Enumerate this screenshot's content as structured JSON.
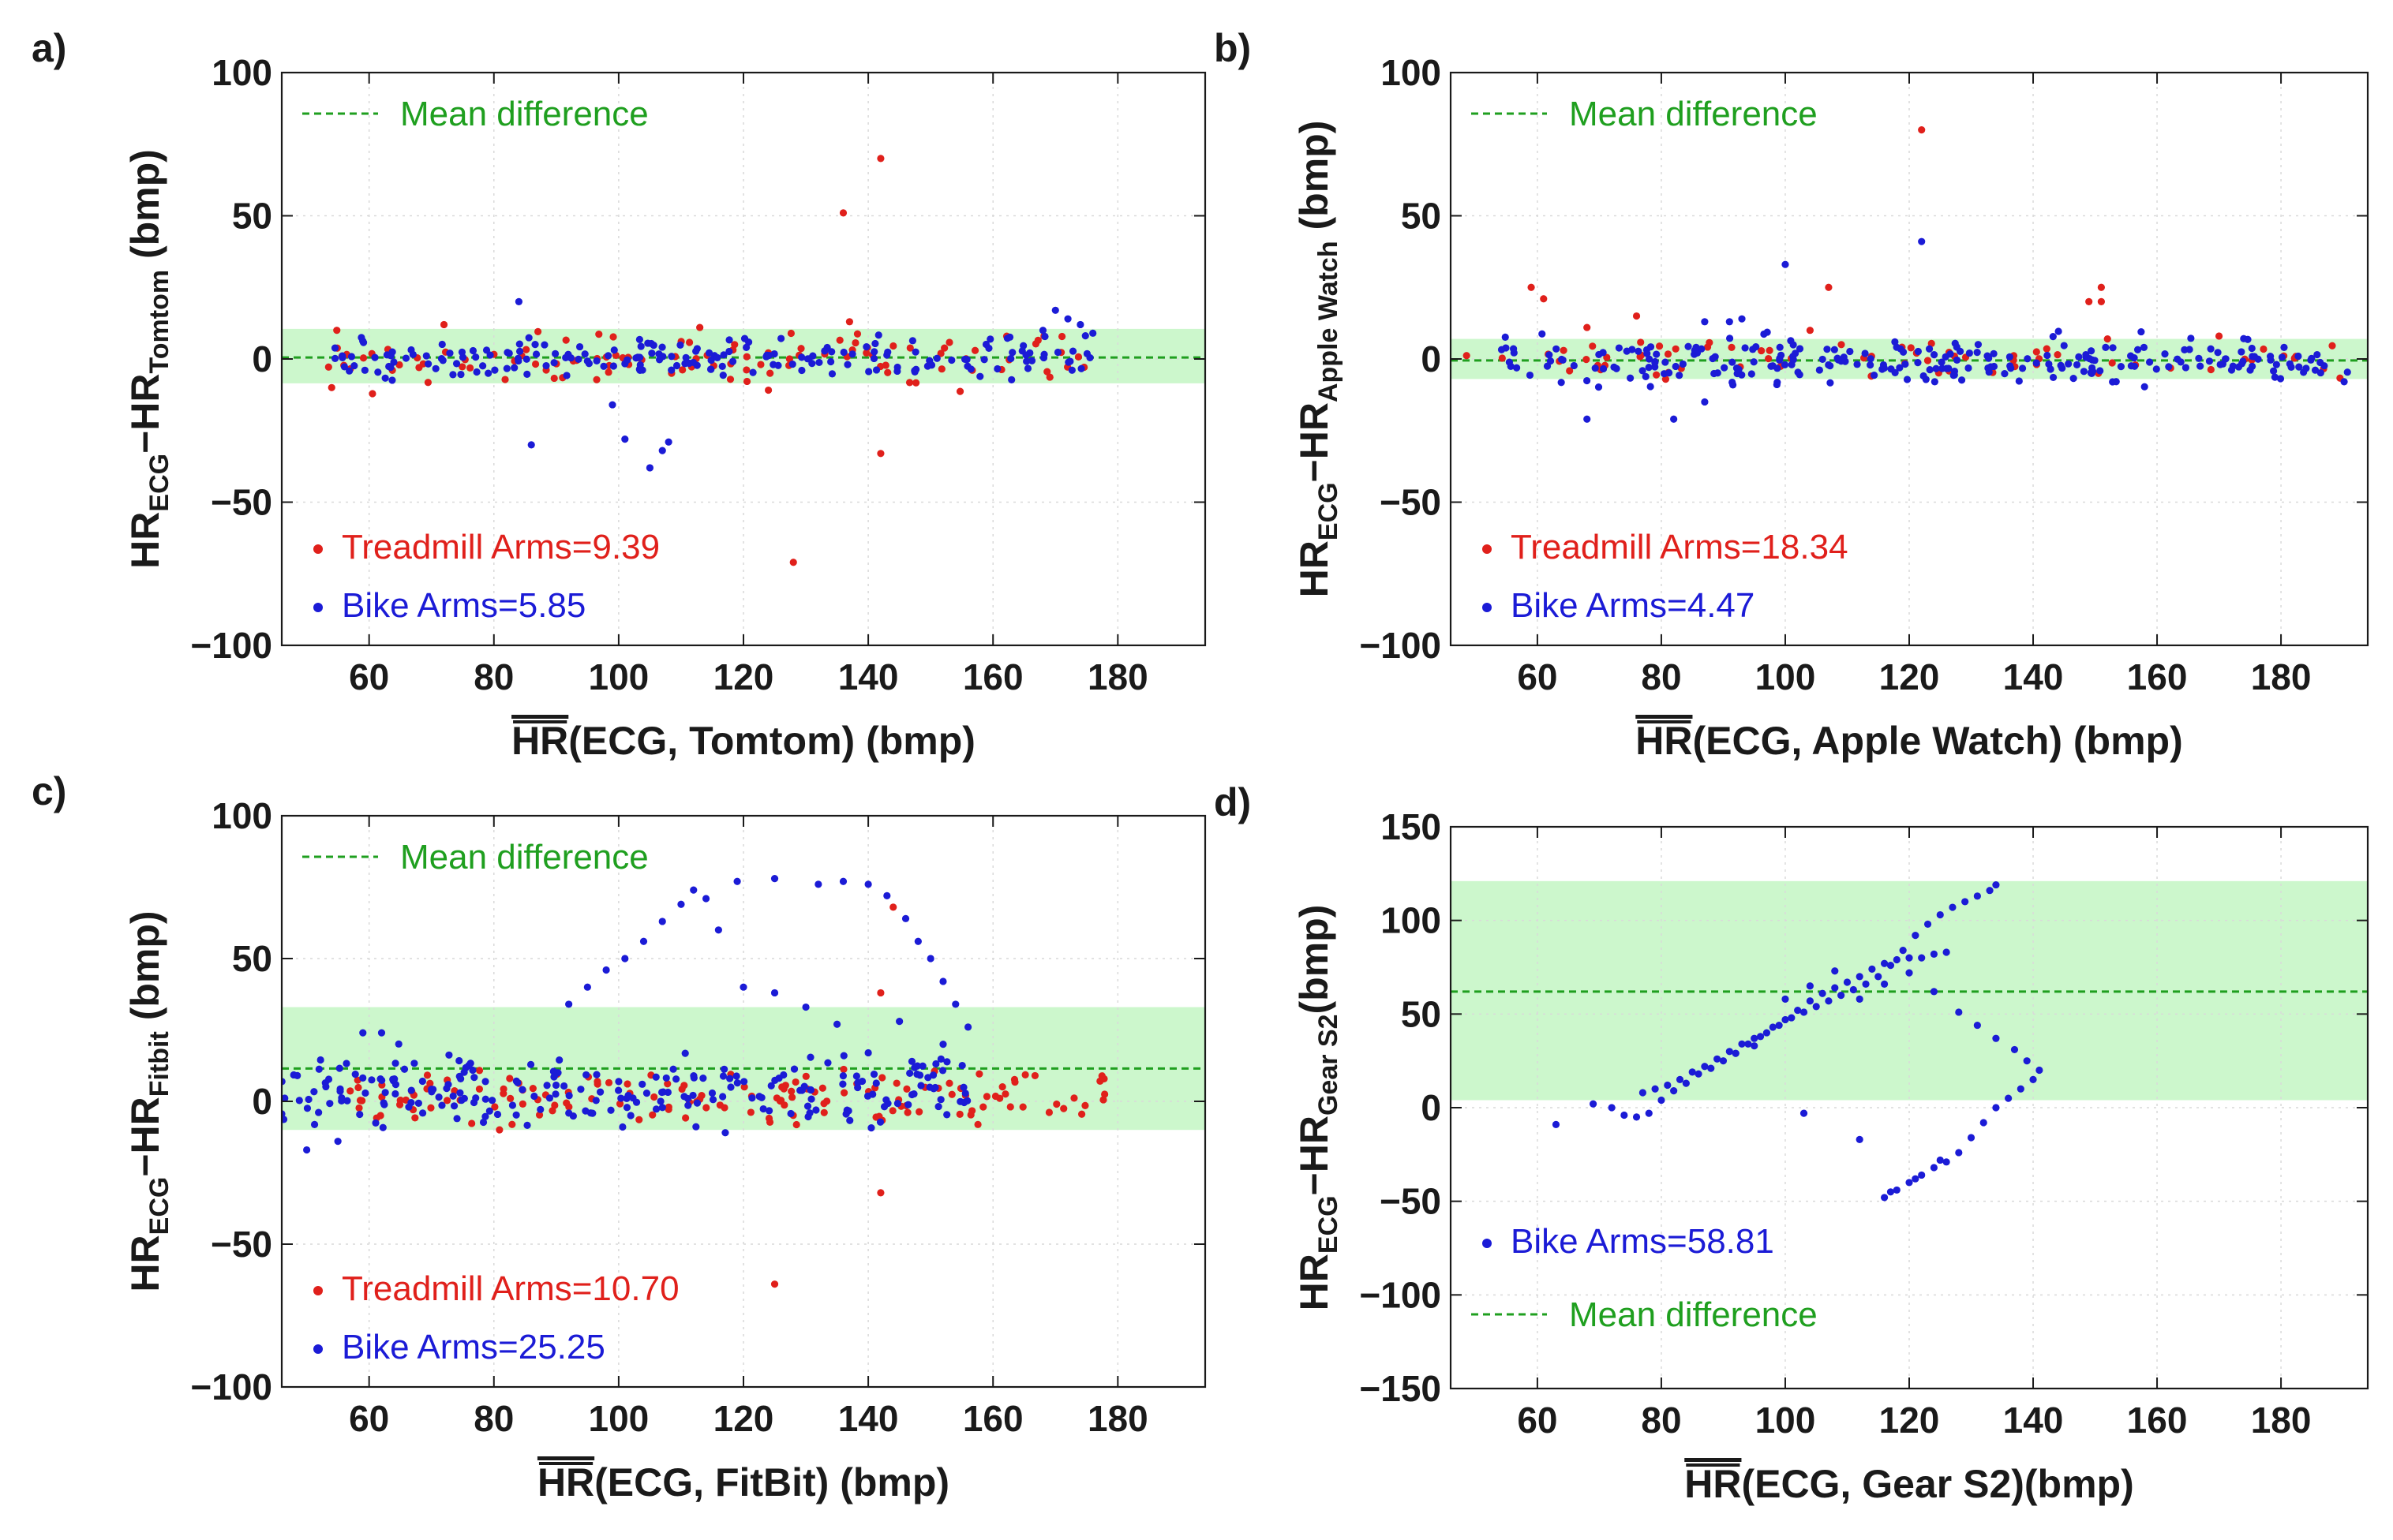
{
  "chart_data": [
    {
      "panel": "a)",
      "type": "scatter",
      "subtype": "bland-altman",
      "xlabel": "HR(ECG, Tomtom) (bmp)",
      "xlabel_parts": {
        "bar": "HR",
        "rest": "(ECG, Tomtom) (bmp)"
      },
      "ylabel": "HR_ECG−HR_Tomtom (bmp)",
      "ylabel_parts": {
        "main1": "HR",
        "sub1": "ECG",
        "dash": "−HR",
        "sub2": "Tomtom",
        "tail": " (bmp)"
      },
      "xlim": [
        46,
        194
      ],
      "ylim": [
        -100,
        100
      ],
      "xticks": [
        60,
        80,
        100,
        120,
        140,
        160,
        180
      ],
      "yticks": [
        -100,
        -50,
        0,
        50,
        100
      ],
      "ytick_labels": [
        "−100",
        "−50",
        "0",
        "50",
        "100"
      ],
      "mean_difference": 0.5,
      "limits_band": [
        -8.5,
        10.5
      ],
      "mean_label": "Mean difference",
      "mean_legend_pos": "top-left",
      "series": [
        {
          "name": "Treadmill Arms=9.39",
          "color": "#e0201b",
          "x_range": [
            52,
            176
          ],
          "bias": 0,
          "spread": 4.5,
          "count": 110,
          "seed": 11,
          "points": [
            [
              128,
              -71
            ],
            [
              136,
              51
            ],
            [
              142,
              70
            ],
            [
              142,
              -33
            ],
            [
              137,
              13
            ],
            [
              113,
              11
            ],
            [
              72,
              12
            ],
            [
              54,
              -10
            ],
            [
              68,
              -3
            ]
          ]
        },
        {
          "name": "Bike Arms=5.85",
          "color": "#1b1bd6",
          "x_range": [
            54,
            176
          ],
          "bias": 0.5,
          "spread": 3.5,
          "count": 200,
          "seed": 23,
          "points": [
            [
              86,
              -30
            ],
            [
              84,
              20
            ],
            [
              99,
              -16
            ],
            [
              101,
              -28
            ],
            [
              105,
              -38
            ],
            [
              107,
              -32
            ],
            [
              108,
              -29
            ],
            [
              170,
              17
            ],
            [
              172,
              14
            ],
            [
              174,
              12
            ],
            [
              168,
              10
            ],
            [
              176,
              9
            ]
          ]
        }
      ],
      "series_legend_pos": "bottom-left"
    },
    {
      "panel": "b)",
      "type": "scatter",
      "subtype": "bland-altman",
      "xlabel": "HR(ECG, Apple Watch) (bmp)",
      "xlabel_parts": {
        "bar": "HR",
        "rest": "(ECG, Apple Watch) (bmp)"
      },
      "ylabel": "HR_ECG−HR_Apple Watch (bmp)",
      "ylabel_parts": {
        "main1": "HR",
        "sub1": "ECG",
        "dash": "−HR",
        "sub2": "Apple Watch",
        "tail": " (bmp)"
      },
      "xlim": [
        46,
        194
      ],
      "ylim": [
        -100,
        100
      ],
      "xticks": [
        60,
        80,
        100,
        120,
        140,
        160,
        180
      ],
      "yticks": [
        -100,
        -50,
        0,
        50,
        100
      ],
      "ytick_labels": [
        "−100",
        "−50",
        "0",
        "50",
        "100"
      ],
      "mean_difference": -0.5,
      "limits_band": [
        -7,
        7
      ],
      "mean_label": "Mean difference",
      "mean_legend_pos": "top-left",
      "series": [
        {
          "name": "Treadmill Arms=18.34",
          "color": "#e0201b",
          "x_range": [
            48,
            190
          ],
          "bias": 0,
          "spread": 3,
          "count": 70,
          "seed": 31,
          "points": [
            [
              122,
              80
            ],
            [
              59,
              25
            ],
            [
              61,
              21
            ],
            [
              68,
              11
            ],
            [
              76,
              15
            ],
            [
              107,
              25
            ],
            [
              149,
              20
            ],
            [
              151,
              25
            ],
            [
              151,
              20
            ],
            [
              104,
              10
            ],
            [
              152,
              7
            ],
            [
              170,
              8
            ]
          ]
        },
        {
          "name": "Bike Arms=4.47",
          "color": "#1b1bd6",
          "x_range": [
            54,
            192
          ],
          "bias": -0.5,
          "spread": 4,
          "count": 260,
          "seed": 47,
          "points": [
            [
              122,
              41
            ],
            [
              100,
              33
            ],
            [
              82,
              -21
            ],
            [
              68,
              -21
            ],
            [
              87,
              -15
            ],
            [
              91,
              13
            ],
            [
              93,
              14
            ],
            [
              87,
              13
            ]
          ]
        }
      ],
      "series_legend_pos": "bottom-left"
    },
    {
      "panel": "c)",
      "type": "scatter",
      "subtype": "bland-altman",
      "xlabel": "HR(ECG, FitBit) (bmp)",
      "xlabel_parts": {
        "bar": "HR",
        "rest": "(ECG, FitBit) (bmp)"
      },
      "ylabel": "HR_ECG−HR_Fitbit (bmp)",
      "ylabel_parts": {
        "main1": "HR",
        "sub1": "ECG",
        "dash": "−HR",
        "sub2": "Fitbit",
        "tail": " (bmp)"
      },
      "xlim": [
        46,
        194
      ],
      "ylim": [
        -100,
        100
      ],
      "xticks": [
        60,
        80,
        100,
        120,
        140,
        160,
        180
      ],
      "yticks": [
        -100,
        -50,
        0,
        50,
        100
      ],
      "ytick_labels": [
        "−100",
        "−50",
        "0",
        "50",
        "100"
      ],
      "mean_difference": 11.5,
      "limits_band": [
        -10,
        33
      ],
      "mean_label": "Mean difference",
      "mean_legend_pos": "top-left",
      "series": [
        {
          "name": "Treadmill Arms=10.70",
          "color": "#e0201b",
          "x_range": [
            56,
            178
          ],
          "bias": 2,
          "spread": 5,
          "count": 150,
          "seed": 53,
          "points": [
            [
              125,
              -64
            ],
            [
              142,
              -32
            ],
            [
              142,
              38
            ],
            [
              144,
              68
            ]
          ]
        },
        {
          "name": "Bike Arms=25.25",
          "color": "#1b1bd6",
          "x_range": [
            46,
            156
          ],
          "bias": 4,
          "spread": 6,
          "count": 230,
          "seed": 67,
          "points": [
            [
              92,
              34
            ],
            [
              95,
              40
            ],
            [
              98,
              46
            ],
            [
              101,
              50
            ],
            [
              104,
              56
            ],
            [
              107,
              63
            ],
            [
              110,
              69
            ],
            [
              112,
              74
            ],
            [
              114,
              71
            ],
            [
              116,
              60
            ],
            [
              119,
              77
            ],
            [
              125,
              78
            ],
            [
              132,
              76
            ],
            [
              136,
              77
            ],
            [
              140,
              76
            ],
            [
              143,
              72
            ],
            [
              146,
              64
            ],
            [
              148,
              56
            ],
            [
              150,
              50
            ],
            [
              152,
              42
            ],
            [
              154,
              34
            ],
            [
              156,
              26
            ],
            [
              152,
              20
            ],
            [
              147,
              14
            ],
            [
              120,
              40
            ],
            [
              125,
              38
            ],
            [
              130,
              33
            ],
            [
              135,
              27
            ],
            [
              140,
              17
            ],
            [
              145,
              28
            ],
            [
              50,
              -17
            ],
            [
              55,
              -14
            ],
            [
              59,
              24
            ],
            [
              62,
              24
            ]
          ]
        }
      ],
      "series_legend_pos": "bottom-left"
    },
    {
      "panel": "d)",
      "type": "scatter",
      "subtype": "bland-altman",
      "xlabel": "HR(ECG, Gear S2)(bmp)",
      "xlabel_parts": {
        "bar": "HR",
        "rest": "(ECG, Gear S2)(bmp)"
      },
      "ylabel": "HR_ECG−HR_Gear S2(bmp)",
      "ylabel_parts": {
        "main1": "HR",
        "sub1": "ECG",
        "dash": "−HR",
        "sub2": "Gear S2",
        "tail": "(bmp)"
      },
      "xlim": [
        46,
        194
      ],
      "ylim": [
        -150,
        150
      ],
      "xticks": [
        60,
        80,
        100,
        120,
        140,
        160,
        180
      ],
      "yticks": [
        -150,
        -100,
        -50,
        0,
        50,
        100,
        150
      ],
      "ytick_labels": [
        "−150",
        "−100",
        "−50",
        "0",
        "50",
        "100",
        "150"
      ],
      "mean_difference": 62,
      "limits_band": [
        4,
        121
      ],
      "mean_label": "Mean difference",
      "mean_legend_pos": "bottom-left",
      "series": [
        {
          "name": "Bike Arms=58.81",
          "color": "#1b1bd6",
          "x_range": [
            63,
            141
          ],
          "bias": 0,
          "spread": 0,
          "count": 0,
          "seed": 71,
          "points": [
            [
              63,
              -9
            ],
            [
              69,
              2
            ],
            [
              72,
              0
            ],
            [
              74,
              -4
            ],
            [
              76,
              -5
            ],
            [
              78,
              -3
            ],
            [
              80,
              4
            ],
            [
              82,
              9
            ],
            [
              84,
              13
            ],
            [
              86,
              18
            ],
            [
              88,
              21
            ],
            [
              90,
              25
            ],
            [
              92,
              29
            ],
            [
              94,
              34
            ],
            [
              96,
              38
            ],
            [
              98,
              43
            ],
            [
              100,
              47
            ],
            [
              102,
              52
            ],
            [
              104,
              57
            ],
            [
              106,
              61
            ],
            [
              108,
              64
            ],
            [
              110,
              67
            ],
            [
              112,
              70
            ],
            [
              114,
              74
            ],
            [
              116,
              77
            ],
            [
              118,
              79
            ],
            [
              120,
              80
            ],
            [
              122,
              80
            ],
            [
              124,
              82
            ],
            [
              126,
              83
            ],
            [
              77,
              8
            ],
            [
              79,
              10
            ],
            [
              81,
              12
            ],
            [
              83,
              15
            ],
            [
              85,
              19
            ],
            [
              87,
              22
            ],
            [
              89,
              26
            ],
            [
              91,
              30
            ],
            [
              93,
              34
            ],
            [
              95,
              37
            ],
            [
              97,
              40
            ],
            [
              99,
              44
            ],
            [
              101,
              48
            ],
            [
              103,
              51
            ],
            [
              105,
              54
            ],
            [
              107,
              57
            ],
            [
              109,
              60
            ],
            [
              111,
              63
            ],
            [
              113,
              66
            ],
            [
              115,
              70
            ],
            [
              117,
              76
            ],
            [
              119,
              84
            ],
            [
              121,
              92
            ],
            [
              123,
              98
            ],
            [
              125,
              103
            ],
            [
              127,
              107
            ],
            [
              129,
              110
            ],
            [
              131,
              113
            ],
            [
              133,
              116
            ],
            [
              134,
              119
            ],
            [
              100,
              58
            ],
            [
              104,
              65
            ],
            [
              108,
              73
            ],
            [
              112,
              58
            ],
            [
              116,
              66
            ],
            [
              120,
              72
            ],
            [
              124,
              62
            ],
            [
              128,
              51
            ],
            [
              131,
              44
            ],
            [
              134,
              37
            ],
            [
              137,
              31
            ],
            [
              139,
              25
            ],
            [
              141,
              20
            ],
            [
              140,
              15
            ],
            [
              138,
              10
            ],
            [
              136,
              5
            ],
            [
              134,
              0
            ],
            [
              132,
              -8
            ],
            [
              130,
              -16
            ],
            [
              128,
              -24
            ],
            [
              126,
              -29
            ],
            [
              124,
              -32
            ],
            [
              122,
              -36
            ],
            [
              120,
              -40
            ],
            [
              118,
              -44
            ],
            [
              116,
              -48
            ],
            [
              125,
              -28
            ],
            [
              121,
              -38
            ],
            [
              117,
              -45
            ],
            [
              112,
              -17
            ],
            [
              103,
              -3
            ],
            [
              92,
              29
            ],
            [
              95,
              33
            ]
          ]
        }
      ],
      "series_legend_pos": "bottom-left"
    }
  ],
  "colors": {
    "treadmill": "#e0201b",
    "bike": "#1b1bd6",
    "mean_line": "#1f9f1f",
    "band": "#ccf7cc",
    "grid": "#d9d9d9"
  }
}
